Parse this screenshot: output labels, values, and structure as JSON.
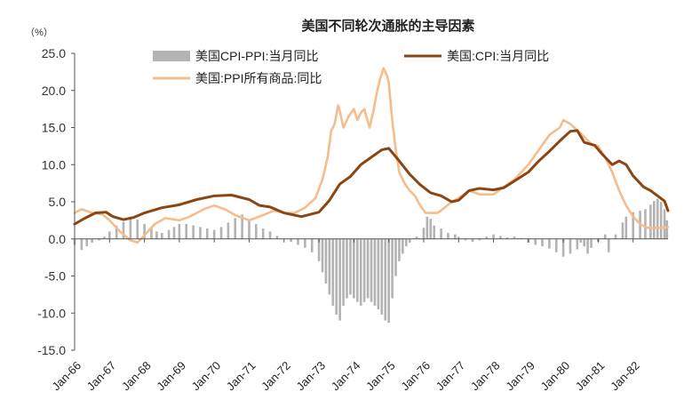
{
  "chart_data": {
    "type": "bar+line",
    "title": "美国不同轮次通胀的主导因素",
    "unit_label": "（%）",
    "ylim": [
      -15,
      25
    ],
    "yticks": [
      25.0,
      20.0,
      15.0,
      10.0,
      5.0,
      0.0,
      -5.0,
      -10.0,
      -15.0
    ],
    "ytick_labels": [
      "25.0",
      "20.0",
      "15.0",
      "10.0",
      "5.0",
      "0.0",
      "-5.0",
      "-10.0",
      "-15.0"
    ],
    "x_range": [
      1966.0,
      1983.0
    ],
    "x_ticks": [
      {
        "label": "Jan-66",
        "year": 1966
      },
      {
        "label": "Jan-67",
        "year": 1967
      },
      {
        "label": "Jan-68",
        "year": 1968
      },
      {
        "label": "Jan-69",
        "year": 1969
      },
      {
        "label": "Jan-70",
        "year": 1970
      },
      {
        "label": "Jan-71",
        "year": 1971
      },
      {
        "label": "Jan-72",
        "year": 1972
      },
      {
        "label": "Jan-73",
        "year": 1973
      },
      {
        "label": "Jan-74",
        "year": 1974
      },
      {
        "label": "Jan-75",
        "year": 1975
      },
      {
        "label": "Jan-76",
        "year": 1976
      },
      {
        "label": "Jan-77",
        "year": 1977
      },
      {
        "label": "Jan-78",
        "year": 1978
      },
      {
        "label": "Jan-79",
        "year": 1979
      },
      {
        "label": "Jan-80",
        "year": 1980
      },
      {
        "label": "Jan-81",
        "year": 1981
      },
      {
        "label": "Jan-82",
        "year": 1982
      }
    ],
    "colors": {
      "diff": "#b3b3b3",
      "cpi": "#8b4513",
      "ppi": "#f5bc8c"
    },
    "series": [
      {
        "name": "美国CPI-PPI:当月同比",
        "kind": "bar",
        "color_key": "diff",
        "points": [
          [
            1966.0,
            -0.8
          ],
          [
            1966.2,
            -1.5
          ],
          [
            1966.35,
            -1.0
          ],
          [
            1966.5,
            -0.5
          ],
          [
            1966.7,
            -0.2
          ],
          [
            1966.85,
            0.3
          ],
          [
            1967.0,
            1.0
          ],
          [
            1967.2,
            1.8
          ],
          [
            1967.4,
            2.3
          ],
          [
            1967.6,
            3.0
          ],
          [
            1967.8,
            2.6
          ],
          [
            1968.0,
            2.0
          ],
          [
            1968.2,
            1.4
          ],
          [
            1968.35,
            1.0
          ],
          [
            1968.5,
            0.8
          ],
          [
            1968.7,
            1.2
          ],
          [
            1968.85,
            1.6
          ],
          [
            1969.0,
            2.0
          ],
          [
            1969.2,
            2.0
          ],
          [
            1969.4,
            1.8
          ],
          [
            1969.6,
            1.6
          ],
          [
            1969.8,
            1.4
          ],
          [
            1970.0,
            1.2
          ],
          [
            1970.2,
            1.6
          ],
          [
            1970.4,
            2.2
          ],
          [
            1970.6,
            2.8
          ],
          [
            1970.8,
            3.3
          ],
          [
            1971.0,
            2.6
          ],
          [
            1971.2,
            2.0
          ],
          [
            1971.4,
            1.4
          ],
          [
            1971.6,
            1.0
          ],
          [
            1971.8,
            0.4
          ],
          [
            1972.0,
            0.0
          ],
          [
            1972.2,
            -0.4
          ],
          [
            1972.4,
            -0.8
          ],
          [
            1972.6,
            -1.2
          ],
          [
            1972.8,
            -1.8
          ],
          [
            1973.0,
            -3.0
          ],
          [
            1973.1,
            -4.5
          ],
          [
            1973.2,
            -6.0
          ],
          [
            1973.3,
            -7.5
          ],
          [
            1973.4,
            -9.0
          ],
          [
            1973.5,
            -10.2
          ],
          [
            1973.6,
            -11.0
          ],
          [
            1973.7,
            -9.0
          ],
          [
            1973.8,
            -8.0
          ],
          [
            1973.9,
            -7.5
          ],
          [
            1974.0,
            -8.0
          ],
          [
            1974.1,
            -8.5
          ],
          [
            1974.2,
            -9.0
          ],
          [
            1974.3,
            -8.5
          ],
          [
            1974.4,
            -8.0
          ],
          [
            1974.5,
            -8.5
          ],
          [
            1974.6,
            -9.0
          ],
          [
            1974.7,
            -9.5
          ],
          [
            1974.8,
            -10.2
          ],
          [
            1974.9,
            -11.0
          ],
          [
            1975.0,
            -11.3
          ],
          [
            1975.1,
            -8.0
          ],
          [
            1975.2,
            -5.0
          ],
          [
            1975.3,
            -3.0
          ],
          [
            1975.4,
            -2.0
          ],
          [
            1975.5,
            -1.0
          ],
          [
            1975.6,
            -0.5
          ],
          [
            1975.8,
            0.3
          ],
          [
            1976.0,
            1.5
          ],
          [
            1976.1,
            3.0
          ],
          [
            1976.2,
            2.7
          ],
          [
            1976.3,
            1.8
          ],
          [
            1976.5,
            1.4
          ],
          [
            1976.7,
            0.8
          ],
          [
            1976.9,
            0.6
          ],
          [
            1977.0,
            0.3
          ],
          [
            1977.2,
            -0.2
          ],
          [
            1977.4,
            -0.4
          ],
          [
            1977.6,
            -0.2
          ],
          [
            1977.8,
            0.3
          ],
          [
            1978.0,
            0.6
          ],
          [
            1978.2,
            0.4
          ],
          [
            1978.4,
            0.2
          ],
          [
            1978.6,
            0.3
          ],
          [
            1978.8,
            0.1
          ],
          [
            1979.0,
            -0.5
          ],
          [
            1979.2,
            -0.8
          ],
          [
            1979.4,
            -1.0
          ],
          [
            1979.6,
            -1.3
          ],
          [
            1979.8,
            -1.8
          ],
          [
            1980.0,
            -2.4
          ],
          [
            1980.2,
            -2.0
          ],
          [
            1980.4,
            -1.4
          ],
          [
            1980.5,
            -0.5
          ],
          [
            1980.6,
            -1.0
          ],
          [
            1980.7,
            -2.0
          ],
          [
            1980.8,
            -1.2
          ],
          [
            1981.0,
            -0.4
          ],
          [
            1981.2,
            0.6
          ],
          [
            1981.3,
            -1.8
          ],
          [
            1981.5,
            0.6
          ],
          [
            1981.7,
            2.2
          ],
          [
            1981.8,
            3.0
          ],
          [
            1982.0,
            3.6
          ],
          [
            1982.2,
            3.8
          ],
          [
            1982.35,
            4.0
          ],
          [
            1982.5,
            4.6
          ],
          [
            1982.6,
            5.1
          ],
          [
            1982.7,
            5.4
          ],
          [
            1982.8,
            5.0
          ],
          [
            1982.9,
            4.0
          ],
          [
            1982.97,
            2.5
          ]
        ]
      },
      {
        "name": "美国:CPI:当月同比",
        "kind": "line",
        "color_key": "cpi",
        "points": [
          [
            1966.0,
            2.0
          ],
          [
            1966.3,
            2.8
          ],
          [
            1966.6,
            3.5
          ],
          [
            1966.9,
            3.6
          ],
          [
            1967.1,
            3.0
          ],
          [
            1967.4,
            2.6
          ],
          [
            1967.7,
            2.9
          ],
          [
            1968.0,
            3.5
          ],
          [
            1968.5,
            4.2
          ],
          [
            1969.0,
            4.6
          ],
          [
            1969.5,
            5.3
          ],
          [
            1970.0,
            5.8
          ],
          [
            1970.5,
            5.9
          ],
          [
            1971.0,
            5.3
          ],
          [
            1971.3,
            4.5
          ],
          [
            1971.6,
            4.3
          ],
          [
            1972.0,
            3.5
          ],
          [
            1972.5,
            3.0
          ],
          [
            1973.0,
            3.6
          ],
          [
            1973.3,
            5.2
          ],
          [
            1973.6,
            7.4
          ],
          [
            1973.9,
            8.4
          ],
          [
            1974.2,
            10.0
          ],
          [
            1974.5,
            11.0
          ],
          [
            1974.8,
            12.0
          ],
          [
            1975.0,
            12.2
          ],
          [
            1975.3,
            10.5
          ],
          [
            1975.6,
            8.7
          ],
          [
            1975.9,
            7.3
          ],
          [
            1976.2,
            6.2
          ],
          [
            1976.5,
            5.8
          ],
          [
            1976.8,
            5.0
          ],
          [
            1977.0,
            5.2
          ],
          [
            1977.3,
            6.5
          ],
          [
            1977.6,
            6.8
          ],
          [
            1978.0,
            6.6
          ],
          [
            1978.3,
            6.9
          ],
          [
            1978.6,
            7.8
          ],
          [
            1979.0,
            9.0
          ],
          [
            1979.3,
            10.5
          ],
          [
            1979.6,
            11.8
          ],
          [
            1979.9,
            13.2
          ],
          [
            1980.2,
            14.5
          ],
          [
            1980.4,
            14.6
          ],
          [
            1980.6,
            13.0
          ],
          [
            1980.9,
            12.6
          ],
          [
            1981.1,
            11.5
          ],
          [
            1981.4,
            10.0
          ],
          [
            1981.6,
            10.5
          ],
          [
            1981.8,
            10.0
          ],
          [
            1982.0,
            8.5
          ],
          [
            1982.3,
            7.0
          ],
          [
            1982.5,
            6.5
          ],
          [
            1982.7,
            5.8
          ],
          [
            1982.9,
            5.1
          ],
          [
            1983.0,
            3.8
          ]
        ]
      },
      {
        "name": "美国:PPI所有商品:同比",
        "kind": "line",
        "color_key": "ppi",
        "points": [
          [
            1966.0,
            3.5
          ],
          [
            1966.2,
            4.0
          ],
          [
            1966.5,
            3.5
          ],
          [
            1966.8,
            3.3
          ],
          [
            1967.0,
            2.5
          ],
          [
            1967.3,
            1.0
          ],
          [
            1967.6,
            -0.2
          ],
          [
            1967.8,
            -0.5
          ],
          [
            1968.0,
            0.5
          ],
          [
            1968.3,
            2.0
          ],
          [
            1968.6,
            2.8
          ],
          [
            1969.0,
            2.5
          ],
          [
            1969.3,
            3.0
          ],
          [
            1969.7,
            4.0
          ],
          [
            1970.0,
            4.5
          ],
          [
            1970.3,
            4.0
          ],
          [
            1970.6,
            3.2
          ],
          [
            1971.0,
            2.5
          ],
          [
            1971.4,
            3.2
          ],
          [
            1971.7,
            3.8
          ],
          [
            1972.0,
            3.5
          ],
          [
            1972.3,
            3.5
          ],
          [
            1972.6,
            4.2
          ],
          [
            1972.9,
            5.5
          ],
          [
            1973.1,
            8.0
          ],
          [
            1973.25,
            11.0
          ],
          [
            1973.35,
            14.5
          ],
          [
            1973.45,
            15.5
          ],
          [
            1973.55,
            18.0
          ],
          [
            1973.6,
            17.2
          ],
          [
            1973.7,
            15.0
          ],
          [
            1973.85,
            16.5
          ],
          [
            1974.0,
            17.5
          ],
          [
            1974.1,
            16.0
          ],
          [
            1974.2,
            17.0
          ],
          [
            1974.3,
            17.5
          ],
          [
            1974.45,
            15.0
          ],
          [
            1974.55,
            17.0
          ],
          [
            1974.65,
            19.5
          ],
          [
            1974.75,
            21.5
          ],
          [
            1974.85,
            23.0
          ],
          [
            1974.95,
            22.0
          ],
          [
            1975.0,
            21.0
          ],
          [
            1975.1,
            16.0
          ],
          [
            1975.2,
            12.0
          ],
          [
            1975.3,
            9.0
          ],
          [
            1975.45,
            7.5
          ],
          [
            1975.6,
            6.5
          ],
          [
            1975.75,
            5.8
          ],
          [
            1975.9,
            4.5
          ],
          [
            1976.05,
            3.5
          ],
          [
            1976.2,
            3.5
          ],
          [
            1976.4,
            3.5
          ],
          [
            1976.6,
            4.2
          ],
          [
            1976.8,
            5.0
          ],
          [
            1977.0,
            5.5
          ],
          [
            1977.3,
            6.5
          ],
          [
            1977.6,
            6.0
          ],
          [
            1978.0,
            6.0
          ],
          [
            1978.3,
            7.0
          ],
          [
            1978.6,
            8.0
          ],
          [
            1979.0,
            10.0
          ],
          [
            1979.3,
            12.0
          ],
          [
            1979.6,
            14.0
          ],
          [
            1979.9,
            15.0
          ],
          [
            1980.0,
            16.0
          ],
          [
            1980.2,
            15.5
          ],
          [
            1980.5,
            14.2
          ],
          [
            1980.8,
            12.8
          ],
          [
            1981.0,
            12.5
          ],
          [
            1981.2,
            11.0
          ],
          [
            1981.4,
            9.0
          ],
          [
            1981.6,
            6.5
          ],
          [
            1981.8,
            4.5
          ],
          [
            1982.0,
            3.0
          ],
          [
            1982.2,
            2.0
          ],
          [
            1982.4,
            1.5
          ],
          [
            1982.6,
            1.5
          ],
          [
            1982.8,
            1.5
          ],
          [
            1983.0,
            1.6
          ]
        ]
      }
    ],
    "legend": [
      {
        "label": "美国CPI-PPI:当月同比",
        "color_key": "diff",
        "kind": "bar"
      },
      {
        "label": "美国:CPI:当月同比",
        "color_key": "cpi",
        "kind": "line"
      },
      {
        "label": "美国:PPI所有商品:同比",
        "color_key": "ppi",
        "kind": "line"
      }
    ]
  }
}
